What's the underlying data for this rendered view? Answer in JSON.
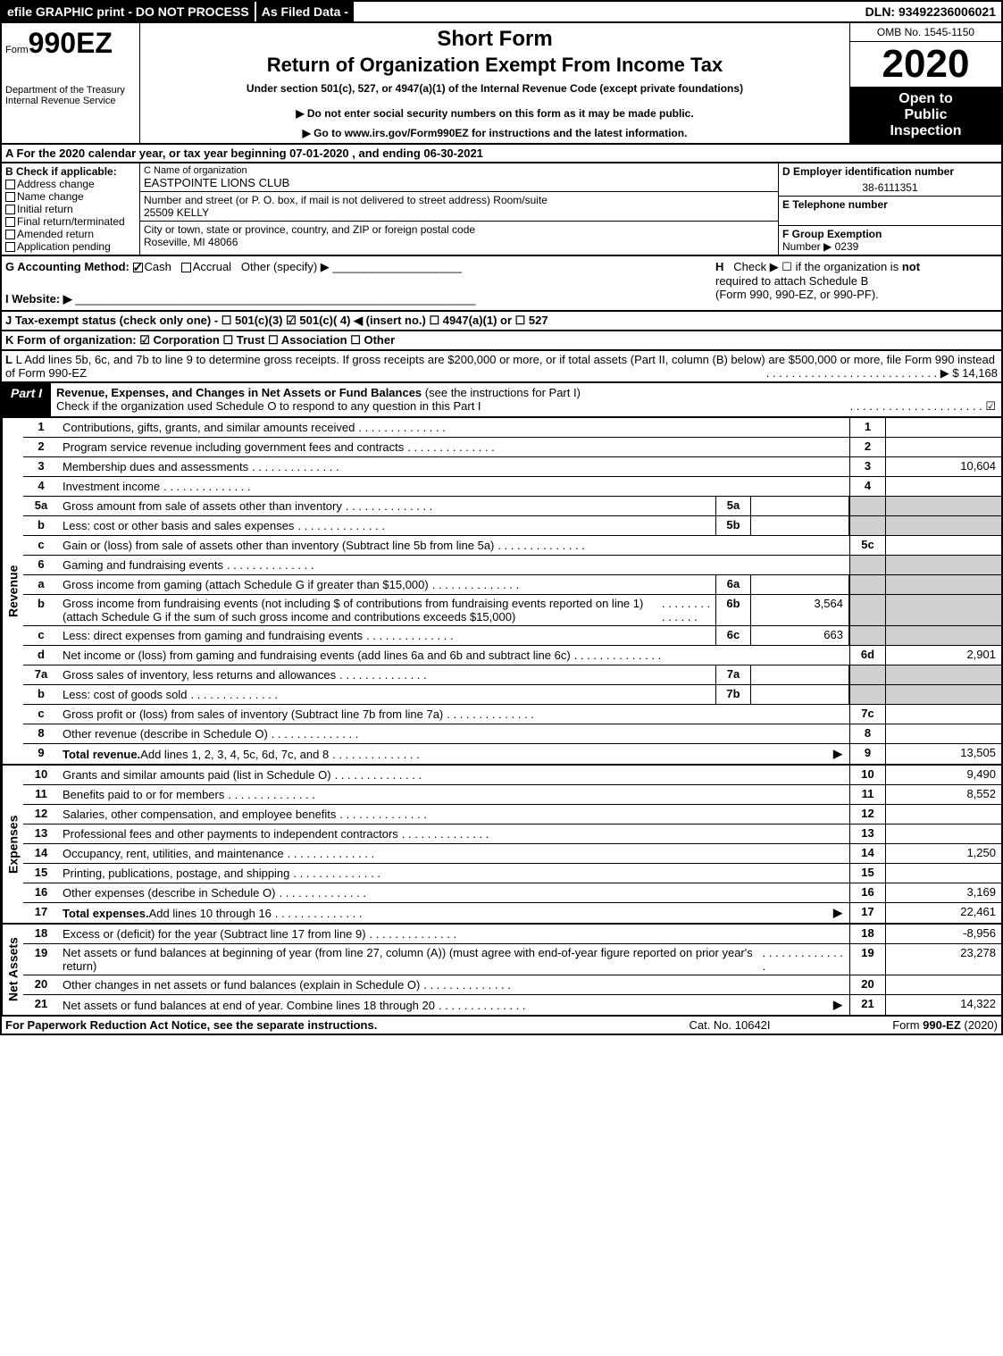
{
  "top": {
    "efile": "efile GRAPHIC print - DO NOT PROCESS",
    "asFiled": "As Filed Data -",
    "dln": "DLN: 93492236006021"
  },
  "header": {
    "formPrefix": "Form",
    "formNum": "990EZ",
    "dept": "Department of the Treasury",
    "irs": "Internal Revenue Service",
    "shortForm": "Short Form",
    "title": "Return of Organization Exempt From Income Tax",
    "underSection": "Under section 501(c), 527, or 4947(a)(1) of the Internal Revenue Code (except private foundations)",
    "warn": "▶ Do not enter social security numbers on this form as it may be made public.",
    "goto": "▶ Go to www.irs.gov/Form990EZ for instructions and the latest information.",
    "omb": "OMB No. 1545-1150",
    "year": "2020",
    "open1": "Open to",
    "open2": "Public",
    "open3": "Inspection"
  },
  "rowA": "A  For the 2020 calendar year, or tax year beginning 07-01-2020 , and ending 06-30-2021",
  "b": {
    "label": "B",
    "text": "Check if applicable:",
    "opts": [
      "Address change",
      "Name change",
      "Initial return",
      "Final return/terminated",
      "Amended return",
      "Application pending"
    ]
  },
  "c": {
    "nameLabel": "C Name of organization",
    "name": "EASTPOINTE LIONS CLUB",
    "addrLabel": "Number and street (or P. O. box, if mail is not delivered to street address)   Room/suite",
    "addr": "25509 KELLY",
    "cityLabel": "City or town, state or province, country, and ZIP or foreign postal code",
    "city": "Roseville, MI  48066"
  },
  "d": {
    "label": "D Employer identification number",
    "val": "38-6111351"
  },
  "e": {
    "label": "E Telephone number",
    "val": ""
  },
  "f": {
    "label": "F Group Exemption",
    "label2": "Number  ▶",
    "val": "0239"
  },
  "g": {
    "label": "G Accounting Method:",
    "cash": "Cash",
    "accrual": "Accrual",
    "other": "Other (specify) ▶"
  },
  "h": {
    "label": "H",
    "text1": "Check ▶  ☐  if the organization is ",
    "not": "not",
    "text2": "required to attach Schedule B",
    "text3": "(Form 990, 990-EZ, or 990-PF)."
  },
  "i": {
    "label": "I Website: ▶"
  },
  "j": {
    "text": "J Tax-exempt status (check only one) - ☐ 501(c)(3) ☑ 501(c)( 4) ◀ (insert no.) ☐ 4947(a)(1) or ☐ 527"
  },
  "k": {
    "text": "K Form of organization:   ☑ Corporation  ☐ Trust  ☐ Association  ☐ Other"
  },
  "l": {
    "text": "L Add lines 5b, 6c, and 7b to line 9 to determine gross receipts. If gross receipts are $200,000 or more, or if total assets (Part II, column (B) below) are $500,000 or more, file Form 990 instead of Form 990-EZ",
    "val": "▶ $ 14,168"
  },
  "partI": {
    "label": "Part I",
    "title": "Revenue, Expenses, and Changes in Net Assets or Fund Balances",
    "subtitle": "(see the instructions for Part I)",
    "check": "Check if the organization used Schedule O to respond to any question in this Part I",
    "checkVal": "☑"
  },
  "revenue": {
    "sideLabel": "Revenue",
    "lines": [
      {
        "n": "1",
        "desc": "Contributions, gifts, grants, and similar amounts received",
        "rn": "1",
        "rv": ""
      },
      {
        "n": "2",
        "desc": "Program service revenue including government fees and contracts",
        "rn": "2",
        "rv": ""
      },
      {
        "n": "3",
        "desc": "Membership dues and assessments",
        "rn": "3",
        "rv": "10,604"
      },
      {
        "n": "4",
        "desc": "Investment income",
        "rn": "4",
        "rv": ""
      },
      {
        "n": "5a",
        "desc": "Gross amount from sale of assets other than inventory",
        "in": "5a",
        "iv": ""
      },
      {
        "n": "b",
        "desc": "Less: cost or other basis and sales expenses",
        "in": "5b",
        "iv": ""
      },
      {
        "n": "c",
        "desc": "Gain or (loss) from sale of assets other than inventory (Subtract line 5b from line 5a)",
        "rn": "5c",
        "rv": ""
      },
      {
        "n": "6",
        "desc": "Gaming and fundraising events"
      },
      {
        "n": "a",
        "desc": "Gross income from gaming (attach Schedule G if greater than $15,000)",
        "in": "6a",
        "iv": ""
      },
      {
        "n": "b",
        "desc": "Gross income from fundraising events (not including $                              of contributions from fundraising events reported on line 1) (attach Schedule G if the sum of such gross income and contributions exceeds $15,000)",
        "in": "6b",
        "iv": "3,564"
      },
      {
        "n": "c",
        "desc": "Less: direct expenses from gaming and fundraising events",
        "in": "6c",
        "iv": "663"
      },
      {
        "n": "d",
        "desc": "Net income or (loss) from gaming and fundraising events (add lines 6a and 6b and subtract line 6c)",
        "rn": "6d",
        "rv": "2,901"
      },
      {
        "n": "7a",
        "desc": "Gross sales of inventory, less returns and allowances",
        "in": "7a",
        "iv": ""
      },
      {
        "n": "b",
        "desc": "Less: cost of goods sold",
        "in": "7b",
        "iv": ""
      },
      {
        "n": "c",
        "desc": "Gross profit or (loss) from sales of inventory (Subtract line 7b from line 7a)",
        "rn": "7c",
        "rv": ""
      },
      {
        "n": "8",
        "desc": "Other revenue (describe in Schedule O)",
        "rn": "8",
        "rv": ""
      },
      {
        "n": "9",
        "desc": "Total revenue.",
        "desc2": " Add lines 1, 2, 3, 4, 5c, 6d, 7c, and 8",
        "rn": "9",
        "rv": "13,505",
        "arrow": "▶",
        "bold": true
      }
    ]
  },
  "expenses": {
    "sideLabel": "Expenses",
    "lines": [
      {
        "n": "10",
        "desc": "Grants and similar amounts paid (list in Schedule O)",
        "rn": "10",
        "rv": "9,490"
      },
      {
        "n": "11",
        "desc": "Benefits paid to or for members",
        "rn": "11",
        "rv": "8,552"
      },
      {
        "n": "12",
        "desc": "Salaries, other compensation, and employee benefits",
        "rn": "12",
        "rv": ""
      },
      {
        "n": "13",
        "desc": "Professional fees and other payments to independent contractors",
        "rn": "13",
        "rv": ""
      },
      {
        "n": "14",
        "desc": "Occupancy, rent, utilities, and maintenance",
        "rn": "14",
        "rv": "1,250"
      },
      {
        "n": "15",
        "desc": "Printing, publications, postage, and shipping",
        "rn": "15",
        "rv": ""
      },
      {
        "n": "16",
        "desc": "Other expenses (describe in Schedule O)",
        "rn": "16",
        "rv": "3,169"
      },
      {
        "n": "17",
        "desc": "Total expenses.",
        "desc2": " Add lines 10 through 16",
        "rn": "17",
        "rv": "22,461",
        "arrow": "▶",
        "bold": true
      }
    ]
  },
  "netassets": {
    "sideLabel": "Net Assets",
    "lines": [
      {
        "n": "18",
        "desc": "Excess or (deficit) for the year (Subtract line 17 from line 9)",
        "rn": "18",
        "rv": "-8,956"
      },
      {
        "n": "19",
        "desc": "Net assets or fund balances at beginning of year (from line 27, column (A)) (must agree with end-of-year figure reported on prior year's return)",
        "rn": "19",
        "rv": "23,278"
      },
      {
        "n": "20",
        "desc": "Other changes in net assets or fund balances (explain in Schedule O)",
        "rn": "20",
        "rv": ""
      },
      {
        "n": "21",
        "desc": "Net assets or fund balances at end of year. Combine lines 18 through 20",
        "rn": "21",
        "rv": "14,322",
        "arrow": "▶"
      }
    ]
  },
  "footer": {
    "left": "For Paperwork Reduction Act Notice, see the separate instructions.",
    "mid": "Cat. No. 10642I",
    "right": "Form 990-EZ (2020)"
  },
  "colors": {
    "black": "#000000",
    "white": "#ffffff",
    "shade": "#d0d0d0"
  }
}
